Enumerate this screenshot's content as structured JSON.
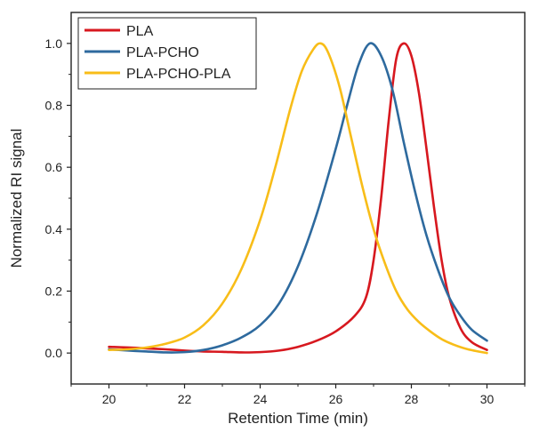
{
  "chart_data": {
    "type": "line",
    "title": "",
    "xlabel": "Retention Time (min)",
    "ylabel": "Normalized RI signal",
    "xlim": [
      19,
      31
    ],
    "ylim": [
      -0.1,
      1.1
    ],
    "xticks": [
      20,
      22,
      24,
      26,
      28,
      30
    ],
    "yticks": [
      0.0,
      0.2,
      0.4,
      0.6,
      0.8,
      1.0
    ],
    "xtick_labels": [
      "20",
      "22",
      "24",
      "26",
      "28",
      "30"
    ],
    "ytick_labels": [
      "0.0",
      "0.2",
      "0.4",
      "0.6",
      "0.8",
      "1.0"
    ],
    "grid": false,
    "legend_position": "top-left",
    "series": [
      {
        "name": "PLA",
        "color": "#d7181f",
        "x": [
          20,
          20.5,
          21,
          21.5,
          22,
          22.5,
          23,
          23.5,
          24,
          24.5,
          25,
          25.5,
          26,
          26.5,
          26.8,
          27.0,
          27.2,
          27.4,
          27.6,
          27.8,
          28.0,
          28.2,
          28.4,
          28.6,
          28.8,
          29.0,
          29.3,
          29.6,
          30
        ],
        "y": [
          0.02,
          0.018,
          0.015,
          0.012,
          0.008,
          0.005,
          0.004,
          0.002,
          0.003,
          0.008,
          0.02,
          0.04,
          0.07,
          0.12,
          0.18,
          0.3,
          0.5,
          0.75,
          0.95,
          1.0,
          0.96,
          0.84,
          0.66,
          0.47,
          0.3,
          0.18,
          0.08,
          0.035,
          0.01
        ]
      },
      {
        "name": "PLA-PCHO",
        "color": "#2e6a9e",
        "x": [
          20,
          20.5,
          21,
          21.5,
          22,
          22.5,
          23,
          23.5,
          24,
          24.5,
          25,
          25.5,
          26,
          26.3,
          26.6,
          26.9,
          27.2,
          27.5,
          27.8,
          28.1,
          28.4,
          28.7,
          29.0,
          29.3,
          29.6,
          30
        ],
        "y": [
          0.012,
          0.008,
          0.005,
          0.002,
          0.003,
          0.01,
          0.025,
          0.05,
          0.09,
          0.16,
          0.28,
          0.45,
          0.66,
          0.8,
          0.93,
          1.0,
          0.96,
          0.85,
          0.68,
          0.52,
          0.38,
          0.27,
          0.18,
          0.12,
          0.075,
          0.04
        ]
      },
      {
        "name": "PLA-PCHO-PLA",
        "color": "#f8bd18",
        "x": [
          20,
          20.5,
          21,
          21.5,
          22,
          22.5,
          23,
          23.5,
          24,
          24.4,
          24.8,
          25.1,
          25.4,
          25.6,
          25.8,
          26.1,
          26.4,
          26.7,
          27.0,
          27.3,
          27.6,
          27.9,
          28.2,
          28.5,
          28.8,
          29.1,
          29.5,
          30
        ],
        "y": [
          0.01,
          0.012,
          0.018,
          0.03,
          0.05,
          0.09,
          0.16,
          0.27,
          0.43,
          0.6,
          0.79,
          0.91,
          0.98,
          1.0,
          0.97,
          0.86,
          0.7,
          0.54,
          0.4,
          0.29,
          0.2,
          0.14,
          0.1,
          0.07,
          0.045,
          0.028,
          0.012,
          0.0
        ]
      }
    ]
  }
}
